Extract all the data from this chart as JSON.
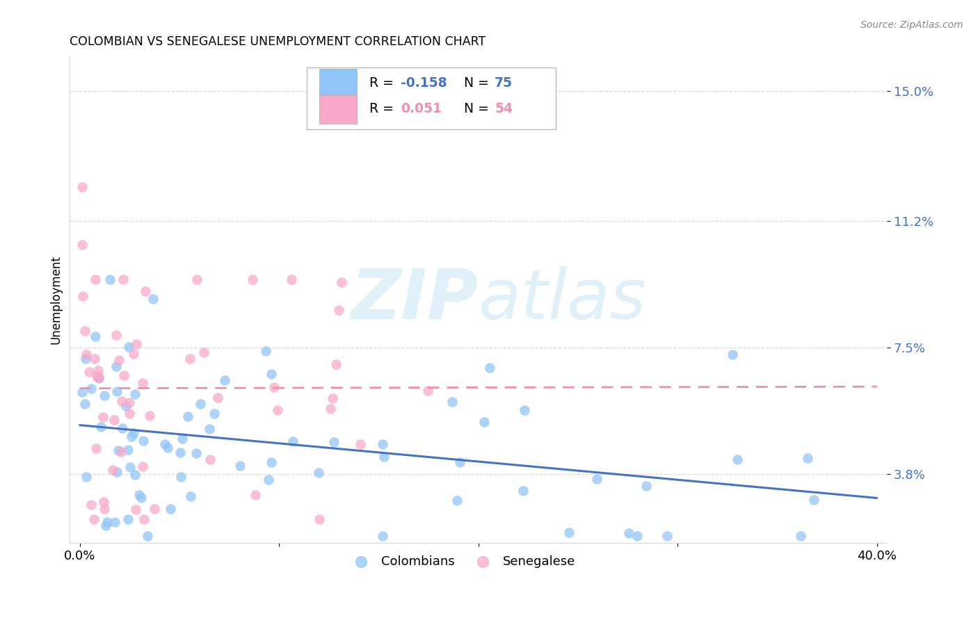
{
  "title": "COLOMBIAN VS SENEGALESE UNEMPLOYMENT CORRELATION CHART",
  "source": "Source: ZipAtlas.com",
  "ylabel": "Unemployment",
  "yticks": [
    0.038,
    0.075,
    0.112,
    0.15
  ],
  "ytick_labels": [
    "3.8%",
    "7.5%",
    "11.2%",
    "15.0%"
  ],
  "xlim": [
    -0.005,
    0.405
  ],
  "ylim": [
    0.018,
    0.16
  ],
  "colombian_color": "#92c5f7",
  "senegalese_color": "#f9a8c9",
  "colombian_line_color": "#4472c4",
  "senegalese_line_color": "#f48cb1",
  "background_color": "#ffffff",
  "grid_color": "#d9d9d9",
  "watermark_color": "#daeef8",
  "r_col": -0.158,
  "n_col": 75,
  "r_sen": 0.051,
  "n_sen": 54
}
